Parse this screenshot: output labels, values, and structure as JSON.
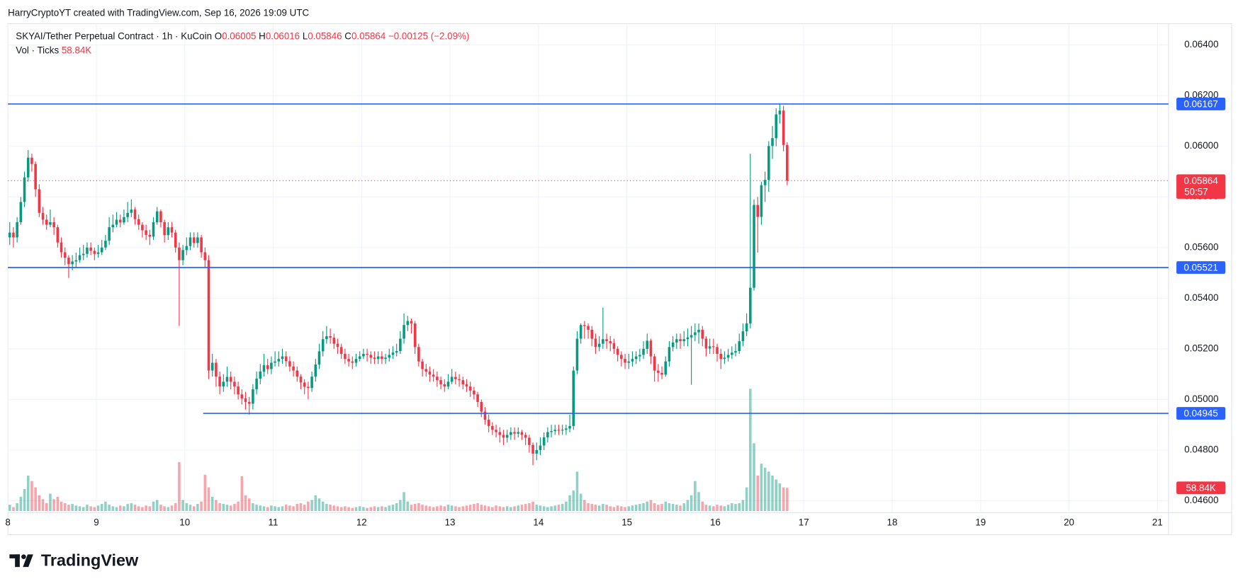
{
  "header": "HarryCryptoYT created with TradingView.com, Sep 16, 2026 19:09 UTC",
  "footer": {
    "logo_text": "TradingView"
  },
  "chart_data": {
    "type": "candlestick",
    "legend": {
      "title": "SKYAI/Tether Perpetual Contract · 1h · KuCoin",
      "labels": [
        "O",
        "H",
        "L",
        "C"
      ],
      "change": "−0.00125 (−2.09%)",
      "volume_title": "Vol · Ticks"
    },
    "volume_label": "58.84K",
    "countdown": "50:57",
    "up_color": "#089981",
    "down_color": "#f23645",
    "level_color": "#2962ff",
    "grid": true,
    "xlim": [
      0,
      315
    ],
    "xticks": [
      {
        "value": 0,
        "label": "8"
      },
      {
        "value": 24,
        "label": "9"
      },
      {
        "value": 48,
        "label": "10"
      },
      {
        "value": 72,
        "label": "11"
      },
      {
        "value": 96,
        "label": "12"
      },
      {
        "value": 120,
        "label": "13"
      },
      {
        "value": 144,
        "label": "14"
      },
      {
        "value": 168,
        "label": "15"
      },
      {
        "value": 192,
        "label": "16"
      },
      {
        "value": 216,
        "label": "17"
      },
      {
        "value": 240,
        "label": "18"
      },
      {
        "value": 264,
        "label": "19"
      },
      {
        "value": 288,
        "label": "20"
      },
      {
        "value": 312,
        "label": "21"
      }
    ],
    "ylim": [
      0.04553,
      0.06484
    ],
    "yticks": [
      {
        "value": 0.046,
        "label": "0.04600"
      },
      {
        "value": 0.048,
        "label": "0.04800"
      },
      {
        "value": 0.05,
        "label": "0.05000"
      },
      {
        "value": 0.052,
        "label": "0.05200"
      },
      {
        "value": 0.054,
        "label": "0.05400"
      },
      {
        "value": 0.056,
        "label": "0.05600"
      },
      {
        "value": 0.058,
        "label": "0.05800"
      },
      {
        "value": 0.06,
        "label": "0.06000"
      },
      {
        "value": 0.062,
        "label": "0.06200"
      },
      {
        "value": 0.064,
        "label": "0.06400"
      }
    ],
    "levels": [
      {
        "value": 0.06167,
        "x_start": 0
      },
      {
        "value": 0.05521,
        "x_start": 0
      },
      {
        "value": 0.04945,
        "x_start": 53
      }
    ],
    "x": [
      0,
      1,
      2,
      3,
      4,
      5,
      6,
      7,
      8,
      9,
      10,
      11,
      12,
      13,
      14,
      15,
      16,
      17,
      18,
      19,
      20,
      21,
      22,
      23,
      24,
      25,
      26,
      27,
      28,
      29,
      30,
      31,
      32,
      33,
      34,
      35,
      36,
      37,
      38,
      39,
      40,
      41,
      42,
      43,
      44,
      45,
      46,
      47,
      48,
      49,
      50,
      51,
      52,
      53,
      54,
      55,
      56,
      57,
      58,
      59,
      60,
      61,
      62,
      63,
      64,
      65,
      66,
      67,
      68,
      69,
      70,
      71,
      72,
      73,
      74,
      75,
      76,
      77,
      78,
      79,
      80,
      81,
      82,
      83,
      84,
      85,
      86,
      87,
      88,
      89,
      90,
      91,
      92,
      93,
      94,
      95,
      96,
      97,
      98,
      99,
      100,
      101,
      102,
      103,
      104,
      105,
      106,
      107,
      108,
      109,
      110,
      111,
      112,
      113,
      114,
      115,
      116,
      117,
      118,
      119,
      120,
      121,
      122,
      123,
      124,
      125,
      126,
      127,
      128,
      129,
      130,
      131,
      132,
      133,
      134,
      135,
      136,
      137,
      138,
      139,
      140,
      141,
      142,
      143,
      144,
      145,
      146,
      147,
      148,
      149,
      150,
      151,
      152,
      153,
      154,
      155,
      156,
      157,
      158,
      159,
      160,
      161,
      162,
      163,
      164,
      165,
      166,
      167,
      168,
      169,
      170,
      171,
      172,
      173,
      174,
      175,
      176,
      177,
      178,
      179,
      180,
      181,
      182,
      183,
      184,
      185,
      186,
      187,
      188,
      189,
      190,
      191,
      192,
      193,
      194,
      195,
      196,
      197,
      198,
      199,
      200,
      201,
      202,
      203,
      204,
      205,
      206,
      207,
      208,
      209,
      210,
      211
    ],
    "open": [
      0.0564,
      0.05659,
      0.0564,
      0.057,
      0.0578,
      0.05877,
      0.05955,
      0.0593,
      0.0583,
      0.05737,
      0.0571,
      0.0569,
      0.057,
      0.0568,
      0.0562,
      0.05581,
      0.0556,
      0.05534,
      0.05545,
      0.0555,
      0.0557,
      0.05575,
      0.056,
      0.05587,
      0.05575,
      0.05581,
      0.056,
      0.05627,
      0.0568,
      0.0569,
      0.0571,
      0.05699,
      0.0572,
      0.05737,
      0.0575,
      0.05712,
      0.0569,
      0.05668,
      0.0565,
      0.05643,
      0.057,
      0.05743,
      0.057,
      0.05649,
      0.0568,
      0.05659,
      0.056,
      0.0555,
      0.0559,
      0.05606,
      0.0564,
      0.05618,
      0.0564,
      0.05581,
      0.0555,
      0.05114,
      0.05145,
      0.0509,
      0.05051,
      0.0507,
      0.05089,
      0.0507,
      0.05051,
      0.0502,
      0.05004,
      0.0499,
      0.04983,
      0.0504,
      0.05082,
      0.0511,
      0.05135,
      0.0512,
      0.05145,
      0.0515,
      0.0516,
      0.0517,
      0.05151,
      0.0513,
      0.05114,
      0.0509,
      0.05067,
      0.0505,
      0.05045,
      0.0509,
      0.05138,
      0.0519,
      0.05238,
      0.0525,
      0.05244,
      0.0522,
      0.05207,
      0.0518,
      0.0516,
      0.0515,
      0.05145,
      0.0516,
      0.0517,
      0.0518,
      0.05176,
      0.05165,
      0.0516,
      0.0517,
      0.0516,
      0.05165,
      0.05176,
      0.05185,
      0.05191,
      0.0524,
      0.05294,
      0.0531,
      0.053,
      0.05207,
      0.0515,
      0.0512,
      0.0511,
      0.05098,
      0.0509,
      0.05076,
      0.0506,
      0.05051,
      0.0507,
      0.05089,
      0.0508,
      0.05076,
      0.0506,
      0.05051,
      0.05035,
      0.0502,
      0.0499,
      0.04952,
      0.0492,
      0.04895,
      0.0488,
      0.04871,
      0.0486,
      0.04849,
      0.0486,
      0.04871,
      0.04865,
      0.04871,
      0.0486,
      0.04849,
      0.0482,
      0.04786,
      0.048,
      0.04818,
      0.0485,
      0.04871,
      0.04875,
      0.0488,
      0.04878,
      0.0488,
      0.04885,
      0.04895,
      0.05114,
      0.0524,
      0.05294,
      0.0529,
      0.05275,
      0.0524,
      0.05207,
      0.0522,
      0.05238,
      0.0523,
      0.05222,
      0.052,
      0.05176,
      0.0516,
      0.05145,
      0.0515,
      0.0516,
      0.0517,
      0.05176,
      0.052,
      0.05232,
      0.0517,
      0.05114,
      0.05105,
      0.05098,
      0.0515,
      0.05207,
      0.05225,
      0.05238,
      0.0523,
      0.05238,
      0.05245,
      0.05254,
      0.05265,
      0.05275,
      0.0524,
      0.05201,
      0.0521,
      0.05207,
      0.0518,
      0.0516,
      0.05165,
      0.05176,
      0.05185,
      0.05191,
      0.0523,
      0.05269,
      0.053,
      0.05441,
      0.05768,
      0.05721,
      0.05846,
      0.05867,
      0.06001,
      0.06032,
      0.06126,
      0.06141,
      0.06005
    ],
    "high": [
      0.057,
      0.0568,
      0.0572,
      0.058,
      0.059,
      0.05985,
      0.0597,
      0.0594,
      0.0585,
      0.0576,
      0.0573,
      0.0575,
      0.0572,
      0.0569,
      0.0564,
      0.056,
      0.0557,
      0.0557,
      0.0558,
      0.056,
      0.0561,
      0.0562,
      0.0562,
      0.056,
      0.0561,
      0.0563,
      0.0565,
      0.0572,
      0.0573,
      0.0574,
      0.0573,
      0.0575,
      0.0578,
      0.0579,
      0.0576,
      0.0573,
      0.057,
      0.0569,
      0.0567,
      0.0572,
      0.0576,
      0.0575,
      0.0571,
      0.057,
      0.057,
      0.0567,
      0.0562,
      0.0561,
      0.0564,
      0.0566,
      0.0566,
      0.0566,
      0.0565,
      0.056,
      0.0557,
      0.0518,
      0.0516,
      0.0511,
      0.051,
      0.0513,
      0.0511,
      0.0509,
      0.0507,
      0.0504,
      0.0503,
      0.0501,
      0.0506,
      0.0511,
      0.0514,
      0.0518,
      0.0516,
      0.0517,
      0.0519,
      0.0519,
      0.052,
      0.0519,
      0.0517,
      0.0515,
      0.0513,
      0.051,
      0.0508,
      0.0507,
      0.0511,
      0.0516,
      0.0522,
      0.0527,
      0.0529,
      0.0528,
      0.0526,
      0.0524,
      0.0522,
      0.052,
      0.0518,
      0.0517,
      0.0518,
      0.0519,
      0.052,
      0.052,
      0.0519,
      0.0519,
      0.0519,
      0.0519,
      0.0518,
      0.052,
      0.0521,
      0.0522,
      0.0527,
      0.0534,
      0.0533,
      0.0532,
      0.0531,
      0.0522,
      0.0516,
      0.0514,
      0.0513,
      0.0512,
      0.0511,
      0.0509,
      0.0508,
      0.051,
      0.0512,
      0.0511,
      0.051,
      0.0509,
      0.0508,
      0.0507,
      0.0505,
      0.0503,
      0.05,
      0.0497,
      0.0494,
      0.0491,
      0.049,
      0.0489,
      0.0488,
      0.0488,
      0.0489,
      0.0489,
      0.0489,
      0.0488,
      0.0487,
      0.0486,
      0.0483,
      0.0483,
      0.0485,
      0.0487,
      0.0489,
      0.049,
      0.049,
      0.049,
      0.049,
      0.049,
      0.0494,
      0.0513,
      0.0527,
      0.053,
      0.0531,
      0.053,
      0.0529,
      0.0526,
      0.0525,
      0.05363,
      0.0526,
      0.0525,
      0.0524,
      0.0521,
      0.0519,
      0.0518,
      0.0518,
      0.0519,
      0.0519,
      0.052,
      0.0523,
      0.0526,
      0.0524,
      0.0518,
      0.0514,
      0.0513,
      0.0517,
      0.0523,
      0.0525,
      0.0526,
      0.0526,
      0.0527,
      0.0528,
      0.0529,
      0.053,
      0.053,
      0.0529,
      0.0525,
      0.0524,
      0.0524,
      0.0522,
      0.052,
      0.0519,
      0.052,
      0.0521,
      0.0522,
      0.0526,
      0.053,
      0.0534,
      0.0597,
      0.0579,
      0.058,
      0.0586,
      0.059,
      0.0602,
      0.0608,
      0.0615,
      0.06167,
      0.0616,
      0.06016
    ],
    "low": [
      0.0561,
      0.056,
      0.0562,
      0.0569,
      0.0576,
      0.0586,
      0.059,
      0.058,
      0.0572,
      0.0569,
      0.0567,
      0.0568,
      0.0565,
      0.056,
      0.0556,
      0.0553,
      0.0548,
      0.0551,
      0.0552,
      0.0554,
      0.0555,
      0.0556,
      0.0557,
      0.0555,
      0.0556,
      0.0557,
      0.0559,
      0.0561,
      0.0566,
      0.0568,
      0.0568,
      0.0569,
      0.057,
      0.0572,
      0.0569,
      0.0567,
      0.0564,
      0.0563,
      0.0561,
      0.0563,
      0.0569,
      0.0568,
      0.0562,
      0.0563,
      0.0564,
      0.0558,
      0.0529,
      0.0553,
      0.0557,
      0.0559,
      0.056,
      0.056,
      0.0556,
      0.0552,
      0.0508,
      0.0509,
      0.0505,
      0.0502,
      0.0503,
      0.0505,
      0.0504,
      0.0502,
      0.05,
      0.0498,
      0.0496,
      0.0494,
      0.0496,
      0.0502,
      0.0506,
      0.0509,
      0.051,
      0.051,
      0.0513,
      0.0513,
      0.0514,
      0.0513,
      0.0511,
      0.0509,
      0.0507,
      0.0504,
      0.0502,
      0.05,
      0.0503,
      0.0507,
      0.0512,
      0.0517,
      0.0522,
      0.0522,
      0.052,
      0.0518,
      0.0516,
      0.0514,
      0.0513,
      0.0512,
      0.0513,
      0.0515,
      0.0516,
      0.0515,
      0.0514,
      0.0514,
      0.0514,
      0.0514,
      0.0514,
      0.0515,
      0.0516,
      0.0517,
      0.0518,
      0.0522,
      0.0527,
      0.0526,
      0.0518,
      0.0513,
      0.0509,
      0.0509,
      0.0507,
      0.0507,
      0.0505,
      0.0504,
      0.0503,
      0.0504,
      0.0506,
      0.0506,
      0.0505,
      0.0504,
      0.0503,
      0.0501,
      0.05,
      0.0497,
      0.0493,
      0.049,
      0.0487,
      0.0486,
      0.0485,
      0.0483,
      0.0482,
      0.0483,
      0.0484,
      0.0484,
      0.0485,
      0.0484,
      0.0482,
      0.0479,
      0.0474,
      0.0476,
      0.0478,
      0.048,
      0.0483,
      0.0485,
      0.0486,
      0.0486,
      0.0486,
      0.0486,
      0.0487,
      0.0488,
      0.051,
      0.0522,
      0.0524,
      0.0524,
      0.0521,
      0.0518,
      0.0519,
      0.052,
      0.052,
      0.0519,
      0.0518,
      0.0515,
      0.0513,
      0.0512,
      0.0512,
      0.0513,
      0.0514,
      0.0515,
      0.0516,
      0.0518,
      0.0514,
      0.0507,
      0.0507,
      0.0508,
      0.0509,
      0.0513,
      0.0519,
      0.052,
      0.052,
      0.0521,
      0.0521,
      0.05058,
      0.0523,
      0.0522,
      0.0521,
      0.0517,
      0.0518,
      0.0518,
      0.0515,
      0.0512,
      0.0514,
      0.0515,
      0.0516,
      0.0517,
      0.0518,
      0.0521,
      0.0525,
      0.0528,
      0.0543,
      0.0558,
      0.0569,
      0.0578,
      0.0582,
      0.0595,
      0.06,
      0.0609,
      0.0598,
      0.05846
    ],
    "close": [
      0.05659,
      0.0564,
      0.057,
      0.0578,
      0.05877,
      0.05955,
      0.0593,
      0.0583,
      0.05737,
      0.0571,
      0.0569,
      0.057,
      0.0568,
      0.0562,
      0.05581,
      0.0556,
      0.05534,
      0.05545,
      0.0555,
      0.0557,
      0.05575,
      0.056,
      0.05587,
      0.05575,
      0.05581,
      0.056,
      0.05627,
      0.0568,
      0.0569,
      0.0571,
      0.05699,
      0.0572,
      0.05737,
      0.0575,
      0.05712,
      0.0569,
      0.05668,
      0.0565,
      0.05643,
      0.057,
      0.05743,
      0.057,
      0.05649,
      0.0568,
      0.05659,
      0.056,
      0.0555,
      0.0559,
      0.05606,
      0.0564,
      0.05618,
      0.0564,
      0.05581,
      0.0555,
      0.05114,
      0.05145,
      0.0509,
      0.05051,
      0.0507,
      0.05089,
      0.0507,
      0.05051,
      0.0502,
      0.05004,
      0.0499,
      0.04983,
      0.0504,
      0.05082,
      0.0511,
      0.05135,
      0.0512,
      0.05145,
      0.0515,
      0.0516,
      0.0517,
      0.05151,
      0.0513,
      0.05114,
      0.0509,
      0.05067,
      0.0505,
      0.05045,
      0.0509,
      0.05138,
      0.0519,
      0.05238,
      0.0525,
      0.05244,
      0.0522,
      0.05207,
      0.0518,
      0.0516,
      0.0515,
      0.05145,
      0.0516,
      0.0517,
      0.0518,
      0.05176,
      0.05165,
      0.0516,
      0.0517,
      0.0516,
      0.05165,
      0.05176,
      0.05185,
      0.05191,
      0.0524,
      0.05294,
      0.0531,
      0.053,
      0.05207,
      0.0515,
      0.0512,
      0.0511,
      0.05098,
      0.0509,
      0.05076,
      0.0506,
      0.05051,
      0.0507,
      0.05089,
      0.0508,
      0.05076,
      0.0506,
      0.05051,
      0.05035,
      0.0502,
      0.0499,
      0.04952,
      0.0492,
      0.04895,
      0.0488,
      0.04871,
      0.0486,
      0.04849,
      0.0486,
      0.04871,
      0.04865,
      0.04871,
      0.0486,
      0.04849,
      0.0482,
      0.04786,
      0.048,
      0.04818,
      0.0485,
      0.04871,
      0.04875,
      0.0488,
      0.04878,
      0.0488,
      0.04885,
      0.04895,
      0.05114,
      0.0524,
      0.05294,
      0.0529,
      0.05275,
      0.0524,
      0.05207,
      0.0522,
      0.05238,
      0.0523,
      0.05222,
      0.052,
      0.05176,
      0.0516,
      0.05145,
      0.0515,
      0.0516,
      0.0517,
      0.05176,
      0.052,
      0.05232,
      0.0517,
      0.05114,
      0.05105,
      0.05098,
      0.0515,
      0.05207,
      0.05225,
      0.05238,
      0.0523,
      0.05238,
      0.05245,
      0.05254,
      0.05265,
      0.05275,
      0.0524,
      0.05201,
      0.0521,
      0.05207,
      0.0518,
      0.0516,
      0.05165,
      0.05176,
      0.05185,
      0.05191,
      0.0523,
      0.05269,
      0.053,
      0.05441,
      0.05768,
      0.05721,
      0.05846,
      0.05867,
      0.06001,
      0.06032,
      0.06126,
      0.06141,
      0.06005,
      0.05864
    ],
    "volume": [
      16000,
      10000,
      20000,
      36000,
      56000,
      90000,
      76000,
      60000,
      40000,
      30000,
      20000,
      44000,
      30000,
      36000,
      24000,
      20000,
      16000,
      18000,
      14000,
      12000,
      10000,
      16000,
      12000,
      10000,
      14000,
      18000,
      24000,
      16000,
      12000,
      10000,
      14000,
      12000,
      18000,
      20000,
      16000,
      12000,
      10000,
      14000,
      12000,
      24000,
      28000,
      16000,
      12000,
      10000,
      14000,
      20000,
      124000,
      28000,
      20000,
      16000,
      12000,
      18000,
      24000,
      92000,
      60000,
      36000,
      28000,
      20000,
      18000,
      16000,
      14000,
      18000,
      24000,
      88000,
      40000,
      32000,
      20000,
      16000,
      14000,
      12000,
      10000,
      14000,
      12000,
      10000,
      12000,
      16000,
      14000,
      12000,
      18000,
      20000,
      16000,
      24000,
      28000,
      40000,
      32000,
      24000,
      18000,
      16000,
      14000,
      12000,
      10000,
      12000,
      10000,
      8000,
      10000,
      12000,
      10000,
      8000,
      10000,
      12000,
      10000,
      12000,
      10000,
      14000,
      16000,
      20000,
      28000,
      48000,
      24000,
      16000,
      18000,
      20000,
      16000,
      14000,
      12000,
      10000,
      12000,
      14000,
      12000,
      16000,
      14000,
      12000,
      10000,
      12000,
      14000,
      16000,
      18000,
      20000,
      16000,
      14000,
      12000,
      10000,
      14000,
      12000,
      10000,
      12000,
      10000,
      12000,
      14000,
      16000,
      18000,
      20000,
      24000,
      16000,
      14000,
      12000,
      10000,
      12000,
      14000,
      16000,
      18000,
      24000,
      40000,
      52000,
      100000,
      44000,
      28000,
      20000,
      18000,
      16000,
      14000,
      18000,
      16000,
      12000,
      10000,
      14000,
      12000,
      10000,
      12000,
      14000,
      16000,
      18000,
      20000,
      24000,
      28000,
      20000,
      16000,
      18000,
      24000,
      20000,
      18000,
      16000,
      14000,
      20000,
      28000,
      40000,
      76000,
      48000,
      24000,
      16000,
      14000,
      12000,
      16000,
      14000,
      12000,
      16000,
      20000,
      18000,
      20000,
      28000,
      60000,
      310000,
      172000,
      90000,
      120000,
      110000,
      100000,
      90000,
      80000,
      70000,
      60000,
      58840
    ]
  }
}
